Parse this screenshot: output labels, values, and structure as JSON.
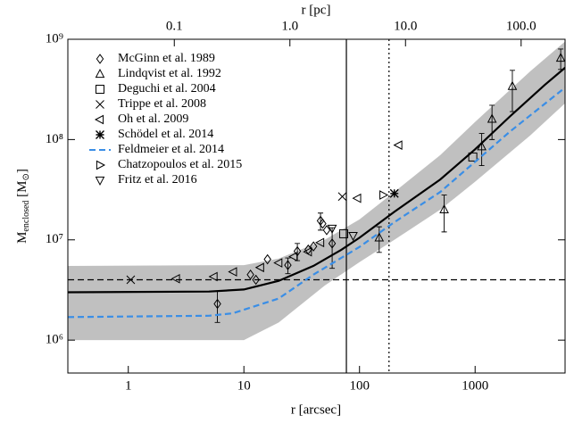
{
  "chart_data": {
    "type": "scatter",
    "xlabel": "r [arcsec]",
    "x2label": "r [pc]",
    "ylabel_parts": [
      "M",
      "enclosed",
      " [M",
      "⊙",
      "]"
    ],
    "log_x": true,
    "log_y": true,
    "xlim": [
      0.3,
      6000
    ],
    "xticks": [
      1,
      10,
      100,
      1000
    ],
    "x2lim": [
      0.012,
      240
    ],
    "x2ticks": [
      0.1,
      {
        "value": 1,
        "label": "1.0"
      },
      {
        "value": 10,
        "label": "10.0"
      },
      {
        "value": 100,
        "label": "100.0"
      }
    ],
    "ylim": [
      470000,
      1000000000
    ],
    "yticks": [
      {
        "value": 1000000,
        "label": "10⁶"
      },
      {
        "value": 10000000,
        "label": "10⁷"
      },
      {
        "value": 100000000,
        "label": "10⁸"
      },
      {
        "value": 1000000000,
        "label": "10⁹"
      }
    ],
    "legend": "upper-left",
    "band": {
      "color": "#c0c0c0",
      "x": [
        0.3,
        10,
        20,
        50,
        100,
        200,
        500,
        1000,
        3000,
        6000
      ],
      "lower": [
        1000000,
        1000000,
        1500000,
        3500000,
        6000000,
        10000000,
        20000000,
        38000000,
        110000000,
        230000000
      ],
      "upper": [
        5500000,
        5600000,
        6500000,
        10000000,
        16000000,
        30000000,
        70000000,
        150000000,
        480000000,
        950000000
      ]
    },
    "model": {
      "color": "#000000",
      "x": [
        0.3,
        5,
        10,
        20,
        40,
        70,
        100,
        200,
        500,
        1000,
        2000,
        4000,
        6000
      ],
      "values": [
        3000000,
        3050000,
        3200000,
        3900000,
        5500000,
        8000000,
        10500000,
        19000000,
        40000000,
        80000000,
        170000000,
        350000000,
        520000000
      ]
    },
    "hlines": [
      {
        "y": 4000000,
        "style": "dashed"
      }
    ],
    "vlines": [
      {
        "x": 77,
        "style": "solid"
      },
      {
        "x": 180,
        "style": "dotted"
      }
    ],
    "series": [
      {
        "name": "McGinn et al. 1989",
        "marker": "diamond",
        "color": "#000000",
        "x": [
          5.9,
          11.4,
          12.7,
          16,
          24,
          29,
          36,
          40,
          46,
          48,
          52,
          58
        ],
        "values": [
          2300000,
          4500000,
          4000000,
          6400000,
          5600000,
          7700000,
          8000000,
          8600000,
          15500000,
          14500000,
          12500000,
          9200000
        ],
        "yerr": [
          800000,
          null,
          null,
          null,
          1000000,
          1500000,
          null,
          null,
          3000000,
          null,
          null,
          4000000
        ]
      },
      {
        "name": "Lindqvist et al. 1992",
        "marker": "triangle-up",
        "color": "#000000",
        "x": [
          148,
          540,
          1140,
          1400,
          2100,
          5500
        ],
        "values": [
          10500000,
          20000000,
          85000000,
          160000000,
          340000000,
          650000000
        ],
        "yerr": [
          3000000,
          8000000,
          30000000,
          60000000,
          150000000,
          150000000
        ]
      },
      {
        "name": "Deguchi et al. 2004",
        "marker": "square",
        "color": "#000000",
        "x": [
          73,
          955
        ],
        "values": [
          11500000,
          67000000
        ]
      },
      {
        "name": "Trippe et al. 2008",
        "marker": "x",
        "color": "#000000",
        "x": [
          1.05,
          71
        ],
        "values": [
          4000000,
          27000000
        ]
      },
      {
        "name": "Oh et al. 2009",
        "marker": "triangle-left",
        "color": "#000000",
        "x": [
          2.6,
          5.5,
          8.1,
          13.9,
          20,
          27,
          36,
          46,
          96,
          218
        ],
        "values": [
          4100000,
          4300000,
          4800000,
          5300000,
          5900000,
          6800000,
          7600000,
          9400000,
          26000000,
          88000000
        ]
      },
      {
        "name": "Schödel et al. 2014",
        "marker": "asterisk",
        "color": "#000000",
        "x": [
          200
        ],
        "values": [
          29000000
        ]
      },
      {
        "name": "Feldmeier et al. 2014",
        "type": "line",
        "color": "#3a8ee6",
        "x": [
          0.3,
          5,
          8,
          20,
          40,
          100,
          200,
          500,
          1000,
          2000,
          6000
        ],
        "values": [
          1700000,
          1750000,
          1850000,
          2600000,
          4500000,
          8500000,
          15000000,
          30000000,
          60000000,
          120000000,
          330000000
        ]
      },
      {
        "name": "Chatzopoulos et al. 2015",
        "marker": "triangle-right",
        "color": "#000000",
        "x": [
          160
        ],
        "values": [
          28000000
        ]
      },
      {
        "name": "Fritz et al. 2016",
        "marker": "triangle-down",
        "color": "#000000",
        "x": [
          58,
          88
        ],
        "values": [
          13000000,
          11000000
        ]
      }
    ]
  }
}
